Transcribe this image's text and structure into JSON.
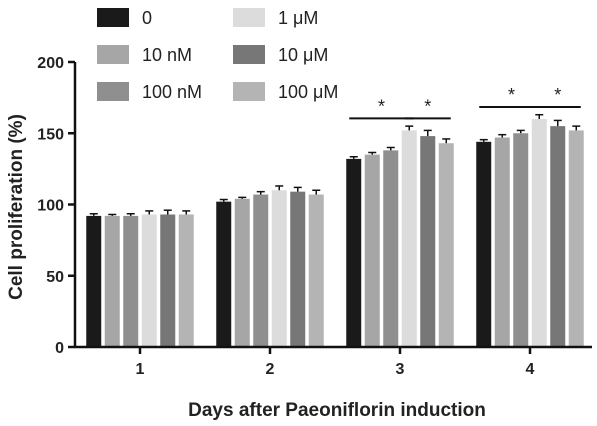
{
  "chart_data": {
    "type": "bar",
    "title": "",
    "xlabel": "Days after Paeoniflorin induction",
    "ylabel": "Cell proliferation (%)",
    "ylim": [
      0,
      200
    ],
    "yticks": [
      "0",
      "50",
      "100",
      "150",
      "200"
    ],
    "categories": [
      "1",
      "2",
      "3",
      "4"
    ],
    "legend_position": "top-left",
    "series": [
      {
        "name": "0",
        "color": "#1a1a1a",
        "values": [
          92,
          102,
          132,
          144
        ],
        "errors": [
          1.5,
          1.5,
          1.5,
          1.5
        ]
      },
      {
        "name": "10 nM",
        "color": "#a6a6a6",
        "values": [
          92,
          104,
          135,
          147
        ],
        "errors": [
          1.0,
          1.0,
          1.5,
          2.0
        ]
      },
      {
        "name": "100 nM",
        "color": "#8f8f8f",
        "values": [
          92,
          107,
          138,
          150
        ],
        "errors": [
          1.5,
          2.0,
          2.0,
          2.0
        ]
      },
      {
        "name": "1 μM",
        "color": "#dcdcdc",
        "values": [
          93,
          110,
          152,
          160
        ],
        "errors": [
          2.5,
          3.0,
          3.0,
          3.0
        ]
      },
      {
        "name": "10 μM",
        "color": "#777777",
        "values": [
          93,
          109,
          148,
          155
        ],
        "errors": [
          3.0,
          3.0,
          4.0,
          4.0
        ]
      },
      {
        "name": "100 μM",
        "color": "#b4b4b4",
        "values": [
          93,
          107,
          143,
          152
        ],
        "errors": [
          2.5,
          3.0,
          3.0,
          3.0
        ]
      }
    ],
    "significance": [
      {
        "category": "3",
        "from_series": 0,
        "to_series": 3,
        "label": "*"
      },
      {
        "category": "3",
        "from_series": 3,
        "to_series": 5,
        "label": "*"
      },
      {
        "category": "4",
        "from_series": 0,
        "to_series": 3,
        "label": "*"
      },
      {
        "category": "4",
        "from_series": 3,
        "to_series": 5,
        "label": "*"
      }
    ]
  }
}
